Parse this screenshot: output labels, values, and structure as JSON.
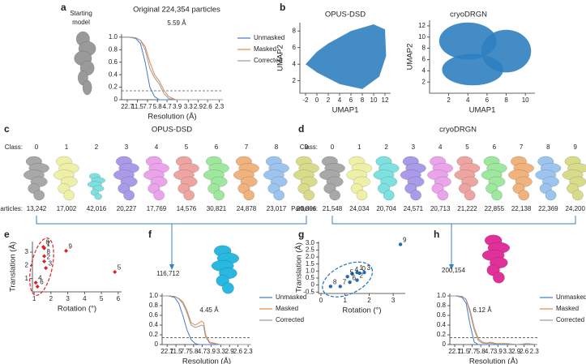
{
  "panel_labels": [
    "a",
    "b",
    "c",
    "d",
    "e",
    "f",
    "g",
    "h"
  ],
  "starting_model": {
    "lines": [
      "Starting",
      "model"
    ],
    "color": "#9a9a9a"
  },
  "class_rows": [
    {
      "title": "OPUS-DSD",
      "class_label": "Class:",
      "particles_label": "Particles:",
      "classes": [
        "0",
        "1",
        "2",
        "3",
        "4",
        "5",
        "6",
        "7",
        "8",
        "9"
      ],
      "particles": [
        "13,242",
        "17,002",
        "42,016",
        "20,227",
        "17,769",
        "14,576",
        "30,821",
        "24,878",
        "23,017",
        "20,806"
      ],
      "colors": [
        "#a8a8a8",
        "#eef0a8",
        "#7fe0e0",
        "#a99be8",
        "#e9a4ea",
        "#eda5a1",
        "#9ee79e",
        "#f0b37e",
        "#9cc4ee",
        "#d8dc8a"
      ]
    },
    {
      "title": "cryoDRGN",
      "class_label": "Class:",
      "particles_label": "Particles:",
      "classes": [
        "0",
        "1",
        "2",
        "3",
        "4",
        "5",
        "6",
        "7",
        "8",
        "9"
      ],
      "particles": [
        "21,548",
        "24,034",
        "20,704",
        "24,571",
        "20,713",
        "21,222",
        "22,855",
        "22,138",
        "22,369",
        "24,200"
      ],
      "colors": [
        "#a8a8a8",
        "#eef0a8",
        "#7fe0e0",
        "#a99be8",
        "#e9a4ea",
        "#eda5a1",
        "#9ee79e",
        "#f0b37e",
        "#9cc4ee",
        "#d8dc8a"
      ]
    }
  ],
  "merged": [
    {
      "count": "116,712",
      "color": "#29b8e0"
    },
    {
      "count": "200,154",
      "color": "#e0309a"
    }
  ],
  "chart_data": [
    {
      "type": "line",
      "title": "Original 224,354 particles",
      "annotation": "5.59 Å",
      "xlabel": "Resolution (Å)",
      "x": [
        0.02,
        0.05,
        0.08,
        0.1,
        0.12,
        0.14,
        0.16,
        0.18,
        0.2,
        0.22,
        0.25,
        0.3,
        0.35,
        0.4,
        0.45
      ],
      "series": [
        {
          "name": "Unmasked",
          "color": "#4a78c8",
          "values": [
            1,
            1,
            0.98,
            0.9,
            0.6,
            0.2,
            0.05,
            0,
            0,
            0,
            0,
            0,
            0,
            0,
            0
          ]
        },
        {
          "name": "Masked",
          "color": "#e0884a",
          "values": [
            1,
            1,
            0.99,
            0.95,
            0.85,
            0.6,
            0.4,
            0.3,
            0.15,
            0.05,
            0,
            0,
            0,
            0,
            0
          ]
        },
        {
          "name": "Corrected",
          "color": "#999999",
          "values": [
            1,
            1,
            0.99,
            0.95,
            0.8,
            0.5,
            0.35,
            0.25,
            0.1,
            0.02,
            0,
            0,
            0,
            0,
            0
          ]
        }
      ],
      "threshold": 0.143,
      "xlim": [
        0.02,
        0.45
      ],
      "ylim": [
        0,
        1.05
      ],
      "xticks": [
        {
          "value": 0.044,
          "label": "22.7"
        },
        {
          "value": 0.087,
          "label": "11.5"
        },
        {
          "value": 0.13,
          "label": "7.7"
        },
        {
          "value": 0.172,
          "label": "5.8"
        },
        {
          "value": 0.213,
          "label": "4.7"
        },
        {
          "value": 0.256,
          "label": "3.9"
        },
        {
          "value": 0.303,
          "label": "3.3"
        },
        {
          "value": 0.345,
          "label": "2.9"
        },
        {
          "value": 0.385,
          "label": "2.6"
        },
        {
          "value": 0.435,
          "label": "2.3"
        }
      ],
      "yticks": [
        0,
        0.2,
        0.4,
        0.6,
        0.8,
        {
          "value": 1,
          "label": "1.0"
        }
      ]
    },
    {
      "type": "scatter",
      "title": "OPUS-DSD",
      "xlabel": "UMAP1",
      "ylabel": "UMAP2",
      "color": "#2f7fc0",
      "xlim": [
        -3,
        13
      ],
      "ylim": [
        0.5,
        9
      ],
      "xticks": [
        -2,
        0,
        2,
        4,
        6,
        8,
        10,
        12
      ],
      "yticks": [
        2,
        4,
        6,
        8
      ]
    },
    {
      "type": "scatter",
      "title": "cryoDRGN",
      "xlabel": "UMAP1",
      "ylabel": "UMAP2",
      "color": "#2f7fc0",
      "xlim": [
        0,
        11
      ],
      "ylim": [
        0,
        13
      ],
      "xticks": [
        2,
        4,
        6,
        8,
        10
      ],
      "yticks": [
        2,
        4,
        6,
        8,
        10,
        12
      ]
    },
    {
      "type": "scatter",
      "xlabel": "Rotation (°)",
      "ylabel": "Translation (Å)",
      "color": "#e02020",
      "marker": "diamond",
      "x": [
        1.55,
        1.6,
        1.6,
        1.7,
        1.1,
        5.8,
        1.2,
        1.6,
        1.6,
        2.9
      ],
      "values": [
        3.4,
        3.3,
        2.3,
        1.8,
        0.7,
        1.5,
        0.4,
        3.3,
        2.7,
        3.1
      ],
      "point_labels": [
        "0",
        "1",
        "2",
        "3",
        "4",
        "5",
        "6",
        "7",
        "8",
        "9"
      ],
      "xlim": [
        0.9,
        6.2
      ],
      "ylim": [
        0,
        3.8
      ],
      "xticks": [
        1,
        2,
        3,
        4,
        5,
        6
      ],
      "yticks": [
        1,
        2,
        3
      ]
    },
    {
      "type": "line",
      "annotation": "4.45 Å",
      "xlabel": "Resolution (Å)",
      "x": [
        0.02,
        0.05,
        0.08,
        0.1,
        0.12,
        0.14,
        0.16,
        0.18,
        0.2,
        0.21,
        0.22,
        0.23,
        0.25,
        0.3,
        0.35,
        0.4,
        0.45
      ],
      "series": [
        {
          "name": "Unmasked",
          "color": "#4a78c8",
          "values": [
            1,
            1,
            0.97,
            0.85,
            0.6,
            0.3,
            0.1,
            0.02,
            0,
            0,
            0,
            0,
            0,
            0,
            0,
            0,
            0
          ]
        },
        {
          "name": "Masked",
          "color": "#e0884a",
          "values": [
            1,
            1,
            0.99,
            0.95,
            0.88,
            0.7,
            0.45,
            0.4,
            0.45,
            0.48,
            0.45,
            0.2,
            0.05,
            0,
            0,
            0,
            0
          ]
        },
        {
          "name": "Corrected",
          "color": "#999999",
          "values": [
            1,
            1,
            0.99,
            0.94,
            0.85,
            0.65,
            0.4,
            0.35,
            0.38,
            0.4,
            0.38,
            0.15,
            0.03,
            0,
            0,
            0,
            0
          ]
        }
      ],
      "threshold": 0.143,
      "xlim": [
        0.02,
        0.45
      ],
      "ylim": [
        0,
        1.05
      ],
      "xticks": [
        {
          "value": 0.044,
          "label": "22.7"
        },
        {
          "value": 0.087,
          "label": "11.5"
        },
        {
          "value": 0.13,
          "label": "7.7"
        },
        {
          "value": 0.172,
          "label": "5.8"
        },
        {
          "value": 0.213,
          "label": "4.7"
        },
        {
          "value": 0.256,
          "label": "3.9"
        },
        {
          "value": 0.303,
          "label": "3.3"
        },
        {
          "value": 0.345,
          "label": "2.9"
        },
        {
          "value": 0.385,
          "label": "2.6"
        },
        {
          "value": 0.435,
          "label": "2.3"
        }
      ],
      "yticks": [
        0,
        0.2,
        0.4,
        0.6,
        0.8,
        {
          "value": 1,
          "label": "1.0"
        }
      ]
    },
    {
      "type": "scatter",
      "xlabel": "Rotation (°)",
      "ylabel": "Translation (Å)",
      "color": "#1f6fb8",
      "marker": "circle",
      "x": [
        1.6,
        1.5,
        1.5,
        1.8,
        1.3,
        1.1,
        1.2,
        0.8,
        0.4,
        3.3
      ],
      "values": [
        0.85,
        0.9,
        0.35,
        0.9,
        0.8,
        0.6,
        0.2,
        -0.1,
        -0.1,
        2.9
      ],
      "point_labels": [
        "0",
        "1",
        "2",
        "3",
        "4",
        "5",
        "6",
        "7",
        "8",
        "9"
      ],
      "xlim": [
        -0.1,
        3.5
      ],
      "ylim": [
        -0.6,
        3.1
      ],
      "xticks": [
        0,
        1,
        2,
        3
      ],
      "yticks": [
        {
          "value": -0.5,
          "label": "-0.5"
        },
        0,
        0.5,
        {
          "value": 1,
          "label": "1.0"
        },
        1.5,
        {
          "value": 2,
          "label": "2.0"
        },
        2.5,
        {
          "value": 3,
          "label": "3.0"
        }
      ]
    },
    {
      "type": "line",
      "annotation": "6.12 Å",
      "xlabel": "Resolution (Å)",
      "x": [
        0.02,
        0.05,
        0.08,
        0.1,
        0.12,
        0.14,
        0.16,
        0.18,
        0.2,
        0.22,
        0.25,
        0.3,
        0.35,
        0.4,
        0.45
      ],
      "series": [
        {
          "name": "Unmasked",
          "color": "#4a78c8",
          "values": [
            1,
            1,
            0.97,
            0.85,
            0.4,
            0.05,
            0,
            0,
            0,
            0,
            0,
            0,
            0,
            0,
            0
          ]
        },
        {
          "name": "Masked",
          "color": "#e0884a",
          "values": [
            1,
            1,
            0.99,
            0.93,
            0.7,
            0.35,
            0.12,
            0.05,
            0.03,
            0.05,
            0.02,
            0.02,
            0,
            0.02,
            0
          ]
        },
        {
          "name": "Corrected",
          "color": "#999999",
          "values": [
            1,
            1,
            0.99,
            0.92,
            0.65,
            0.3,
            0.08,
            0.03,
            0.02,
            0.03,
            0.01,
            0.01,
            0,
            0.01,
            0
          ]
        }
      ],
      "threshold": 0.143,
      "xlim": [
        0.02,
        0.45
      ],
      "ylim": [
        0,
        1.05
      ],
      "xticks": [
        {
          "value": 0.044,
          "label": "22.7"
        },
        {
          "value": 0.087,
          "label": "11.5"
        },
        {
          "value": 0.13,
          "label": "7.7"
        },
        {
          "value": 0.172,
          "label": "5.8"
        },
        {
          "value": 0.213,
          "label": "4.7"
        },
        {
          "value": 0.256,
          "label": "3.9"
        },
        {
          "value": 0.303,
          "label": "3.3"
        },
        {
          "value": 0.345,
          "label": "2.9"
        },
        {
          "value": 0.385,
          "label": "2.6"
        },
        {
          "value": 0.435,
          "label": "2.3"
        }
      ],
      "yticks": [
        0,
        0.2,
        0.4,
        0.6,
        0.8,
        {
          "value": 1,
          "label": "1.0"
        }
      ]
    }
  ]
}
